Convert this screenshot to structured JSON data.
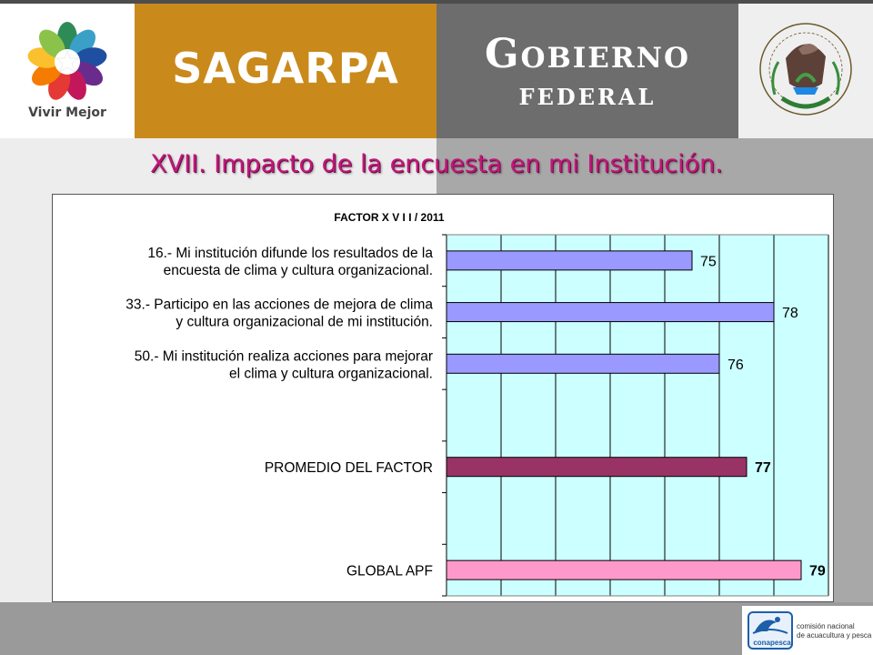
{
  "header": {
    "logo_caption": "Vivir Mejor",
    "agency": "SAGARPA",
    "gobierno_line1": "Gobierno",
    "gobierno_line2": "federal"
  },
  "slide": {
    "title": "XVII. Impacto de la encuesta en mi Institución."
  },
  "chart_data": {
    "type": "bar",
    "orientation": "horizontal",
    "title": "FACTOR   X V I I    /    2011",
    "xlim": [
      66,
      80
    ],
    "gridlines": [
      66,
      68,
      70,
      72,
      74,
      76,
      78,
      80
    ],
    "grid": true,
    "plot_background": "#ccffff",
    "categories": [
      {
        "label_lines": [
          "16.- Mi institución difunde los resultados de la",
          "encuesta de clima y cultura organizacional."
        ],
        "value": 75,
        "value_label": "75",
        "color": "#9999ff",
        "bold": false
      },
      {
        "label_lines": [
          "33.- Participo en las acciones de mejora de clima",
          "y cultura organizacional de mi institución."
        ],
        "value": 78,
        "value_label": "78",
        "color": "#9999ff",
        "bold": false
      },
      {
        "label_lines": [
          "50.- Mi institución realiza acciones para mejorar",
          "el clima y cultura organizacional."
        ],
        "value": 76,
        "value_label": "76",
        "color": "#9999ff",
        "bold": false
      },
      {
        "label_lines": [
          "PROMEDIO DEL FACTOR"
        ],
        "value": 77,
        "value_label": "77",
        "color": "#993366",
        "bold": true
      },
      {
        "label_lines": [
          "GLOBAL APF"
        ],
        "value": 79,
        "value_label": "79",
        "color": "#ff99cc",
        "bold": true
      }
    ]
  },
  "footer": {
    "logo_word": "conapesca",
    "logo_sub1": "comisión nacional",
    "logo_sub2": "de acuacultura y pesca"
  }
}
